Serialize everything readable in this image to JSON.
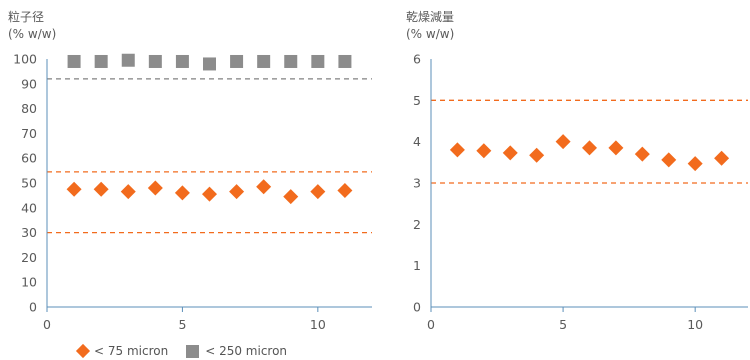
{
  "colors": {
    "orange": "#f26b1d",
    "gray": "#8c8c8c",
    "axis": "#5b8fb9",
    "grid_text": "#5a5a5a",
    "limit_orange": "#f26b1d",
    "limit_gray": "#808080"
  },
  "legend": {
    "series1": "< 75 micron",
    "series2": "< 250 micron"
  },
  "chart_data": [
    {
      "type": "scatter",
      "title": "粒子径",
      "ylabel": "(% w/w)",
      "xlim": [
        0,
        12
      ],
      "ylim": [
        0,
        100
      ],
      "xticks": [
        0,
        5,
        10
      ],
      "yticks": [
        0,
        10,
        20,
        30,
        40,
        50,
        60,
        70,
        80,
        90,
        100
      ],
      "series": [
        {
          "name": "< 75 micron",
          "marker": "diamond",
          "color": "#f26b1d",
          "x": [
            1,
            2,
            3,
            4,
            5,
            6,
            7,
            8,
            9,
            10,
            11
          ],
          "y": [
            47.5,
            47.5,
            46.5,
            48,
            46,
            45.5,
            46.5,
            48.5,
            44.5,
            46.5,
            47
          ]
        },
        {
          "name": "< 250 micron",
          "marker": "square",
          "color": "#8c8c8c",
          "x": [
            1,
            2,
            3,
            4,
            5,
            6,
            7,
            8,
            9,
            10,
            11
          ],
          "y": [
            99,
            99,
            99.5,
            99,
            99,
            98,
            99,
            99,
            99,
            99,
            99
          ]
        }
      ],
      "reference_lines": [
        {
          "y": 92,
          "style": "dashed",
          "color": "#808080"
        },
        {
          "y": 54.5,
          "style": "dashed",
          "color": "#f26b1d"
        },
        {
          "y": 30,
          "style": "dashed",
          "color": "#f26b1d"
        }
      ]
    },
    {
      "type": "scatter",
      "title": "乾燥減量",
      "ylabel": "(% w/w)",
      "xlim": [
        0,
        12
      ],
      "ylim": [
        0,
        6
      ],
      "xticks": [
        0,
        5,
        10
      ],
      "yticks": [
        0,
        1,
        2,
        3,
        4,
        5,
        6
      ],
      "series": [
        {
          "name": "< 75 micron",
          "marker": "diamond",
          "color": "#f26b1d",
          "x": [
            1,
            2,
            3,
            4,
            5,
            6,
            7,
            8,
            9,
            10,
            11
          ],
          "y": [
            3.8,
            3.78,
            3.73,
            3.67,
            4.0,
            3.85,
            3.85,
            3.7,
            3.56,
            3.47,
            3.6
          ]
        }
      ],
      "reference_lines": [
        {
          "y": 5,
          "style": "dashed",
          "color": "#f26b1d"
        },
        {
          "y": 3,
          "style": "dashed",
          "color": "#f26b1d"
        }
      ]
    }
  ]
}
